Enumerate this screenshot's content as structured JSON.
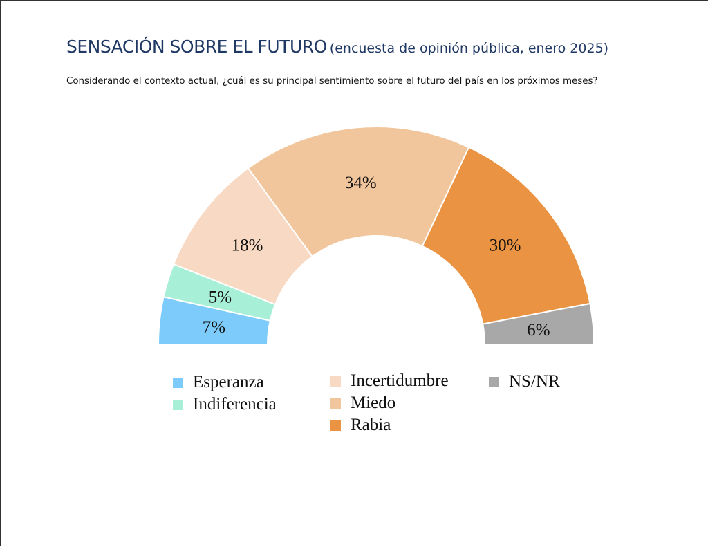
{
  "header": {
    "title_main": "SENSACIÓN SOBRE EL FUTURO",
    "title_sub": "(encuesta de opinión pública, enero 2025)",
    "question": "Considerando el contexto actual, ¿cuál es su principal sentimiento sobre el futuro del país en los próximos meses?"
  },
  "chart_data": {
    "type": "pie",
    "variant": "semicircle-donut",
    "title": "SENSACIÓN SOBRE EL FUTURO (encuesta de opinión pública, enero 2025)",
    "subtitle": "Considerando el contexto actual, ¿cuál es su principal sentimiento sobre el futuro del país en los próximos meses?",
    "unit": "%",
    "legend_position": "bottom",
    "slices": [
      {
        "label": "Esperanza",
        "value": 7,
        "display": "7%",
        "color": "#7dcbfa"
      },
      {
        "label": "Indiferencia",
        "value": 5,
        "display": "5%",
        "color": "#a7f0d7"
      },
      {
        "label": "Incertidumbre",
        "value": 18,
        "display": "18%",
        "color": "#f8d9c3"
      },
      {
        "label": "Miedo",
        "value": 34,
        "display": "34%",
        "color": "#f2c69c"
      },
      {
        "label": "Rabia",
        "value": 30,
        "display": "30%",
        "color": "#ea9443"
      },
      {
        "label": "NS/NR",
        "value": 6,
        "display": "6%",
        "color": "#a8a8a8"
      }
    ]
  }
}
